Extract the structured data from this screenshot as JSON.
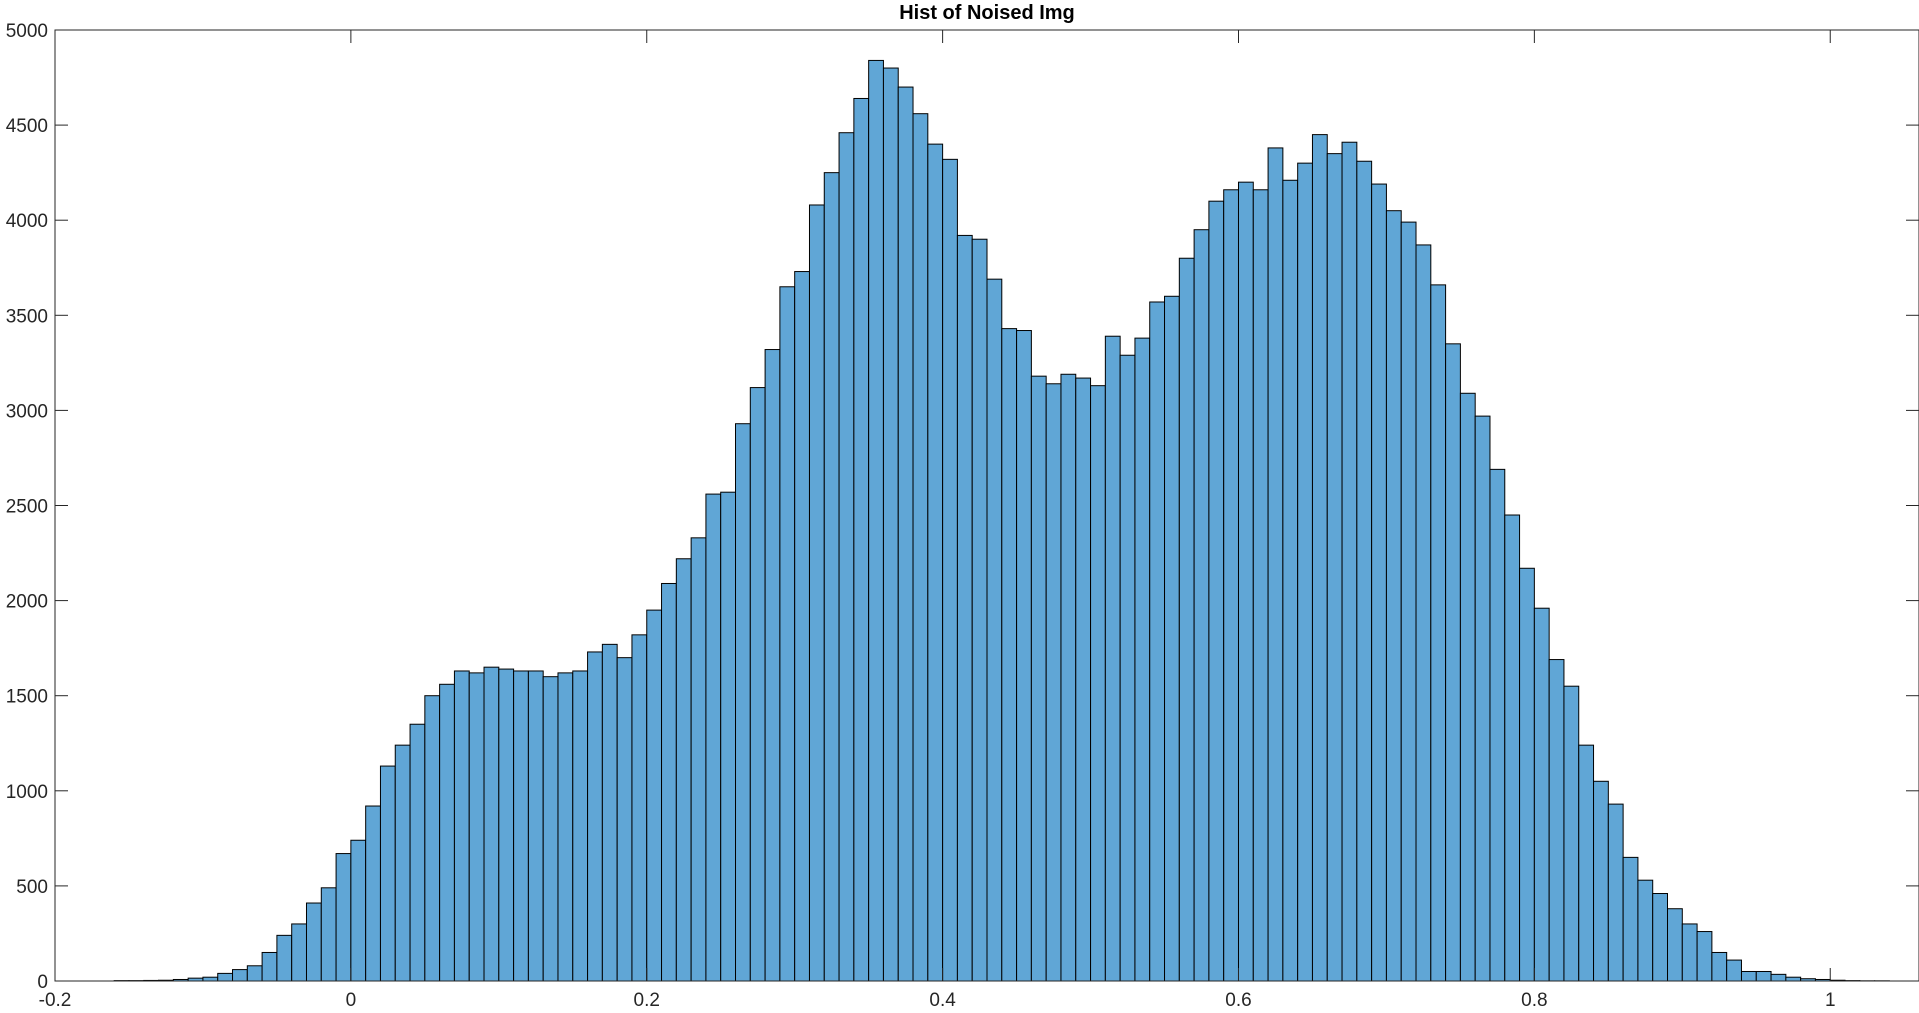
{
  "chart_data": {
    "type": "bar",
    "title": "Hist of Noised Img",
    "xlabel": "",
    "ylabel": "",
    "xlim": [
      -0.2,
      1.06
    ],
    "ylim": [
      0,
      5000
    ],
    "grid": false,
    "legend": "none",
    "bin_width": 0.01,
    "first_bin_start": -0.16,
    "x_ticks": [
      -0.2,
      0,
      0.2,
      0.4,
      0.6,
      0.8,
      1
    ],
    "x_tick_labels": [
      "-0.2",
      "0",
      "0.2",
      "0.4",
      "0.6",
      "0.8",
      "1"
    ],
    "y_ticks": [
      0,
      500,
      1000,
      1500,
      2000,
      2500,
      3000,
      3500,
      4000,
      4500,
      5000
    ],
    "y_tick_labels": [
      "0",
      "500",
      "1000",
      "1500",
      "2000",
      "2500",
      "3000",
      "3500",
      "4000",
      "4500",
      "5000"
    ],
    "series": [
      {
        "name": "counts",
        "color": "#60a6d6",
        "edge_color": "#000000",
        "values": [
          2,
          2,
          3,
          4,
          8,
          15,
          20,
          40,
          60,
          80,
          150,
          240,
          300,
          410,
          490,
          670,
          740,
          920,
          1130,
          1240,
          1350,
          1500,
          1560,
          1630,
          1620,
          1650,
          1640,
          1630,
          1630,
          1600,
          1620,
          1630,
          1730,
          1770,
          1700,
          1820,
          1950,
          2090,
          2220,
          2330,
          2560,
          2570,
          2930,
          3120,
          3320,
          3650,
          3730,
          4080,
          4250,
          4460,
          4640,
          4840,
          4800,
          4700,
          4560,
          4400,
          4320,
          3920,
          3900,
          3690,
          3430,
          3420,
          3180,
          3140,
          3190,
          3170,
          3130,
          3390,
          3290,
          3380,
          3570,
          3600,
          3800,
          3950,
          4100,
          4160,
          4200,
          4160,
          4380,
          4210,
          4300,
          4450,
          4350,
          4410,
          4310,
          4190,
          4050,
          3990,
          3870,
          3660,
          3350,
          3090,
          2970,
          2690,
          2450,
          2170,
          1960,
          1690,
          1550,
          1240,
          1050,
          930,
          650,
          530,
          460,
          380,
          300,
          260,
          150,
          110,
          50,
          50,
          35,
          20,
          12,
          8,
          4,
          2,
          1,
          1
        ]
      }
    ]
  }
}
